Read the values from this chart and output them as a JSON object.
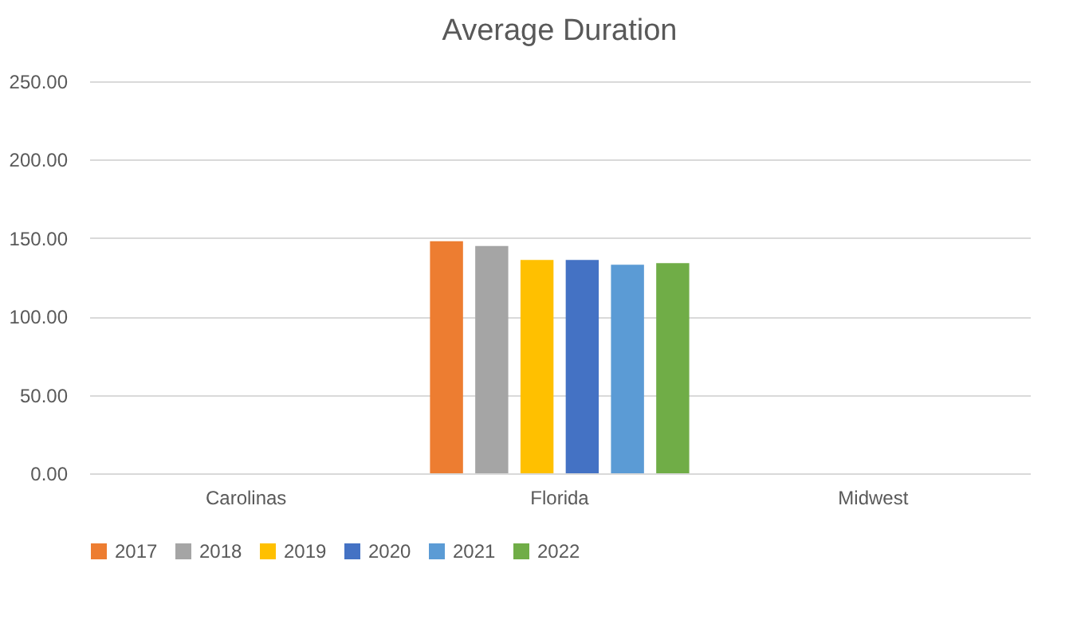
{
  "chart_data": {
    "type": "bar",
    "title": "Average Duration",
    "categories": [
      "Carolinas",
      "Florida",
      "Midwest"
    ],
    "series": [
      {
        "name": "2017",
        "color": "#ed7d31",
        "values": [
          null,
          148,
          null
        ]
      },
      {
        "name": "2018",
        "color": "#a5a5a5",
        "values": [
          null,
          145,
          null
        ]
      },
      {
        "name": "2019",
        "color": "#ffc000",
        "values": [
          null,
          136,
          null
        ]
      },
      {
        "name": "2020",
        "color": "#4472c4",
        "values": [
          null,
          136,
          null
        ]
      },
      {
        "name": "2021",
        "color": "#5b9bd5",
        "values": [
          null,
          133,
          null
        ]
      },
      {
        "name": "2022",
        "color": "#70ad47",
        "values": [
          null,
          134,
          null
        ]
      }
    ],
    "ylim": [
      0,
      250
    ],
    "yticks": [
      {
        "value": 0,
        "label": "0.00"
      },
      {
        "value": 50,
        "label": "50.00"
      },
      {
        "value": 100,
        "label": "100.00"
      },
      {
        "value": 150,
        "label": "150.00"
      },
      {
        "value": 200,
        "label": "200.00"
      },
      {
        "value": 250,
        "label": "250.00"
      }
    ],
    "grid": "y",
    "legend": "bottom"
  }
}
